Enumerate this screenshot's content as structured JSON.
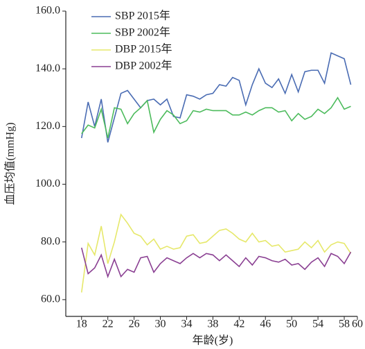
{
  "chart_data": {
    "type": "line",
    "x_label": "年龄(岁)",
    "y_label": "血压均值(mmHg)",
    "x": [
      18,
      19,
      20,
      21,
      22,
      23,
      24,
      25,
      26,
      27,
      28,
      29,
      30,
      31,
      32,
      33,
      34,
      35,
      36,
      37,
      38,
      39,
      40,
      41,
      42,
      43,
      44,
      45,
      46,
      47,
      48,
      49,
      50,
      51,
      52,
      53,
      54,
      55,
      56,
      57,
      58,
      59
    ],
    "series": [
      {
        "name": "SBP 2015年",
        "color": "#4a6cb3",
        "values": [
          116,
          128.5,
          120,
          129.5,
          114.5,
          123,
          131.5,
          132.5,
          129.5,
          126.5,
          129,
          129.5,
          127.5,
          129.5,
          123.5,
          123,
          131,
          130.5,
          129.5,
          131,
          131.5,
          134.5,
          134,
          137,
          136,
          127.5,
          134.5,
          140,
          135,
          133.5,
          136.5,
          131.5,
          138,
          132,
          139,
          139.5,
          139.5,
          135,
          145.5,
          144.5,
          143.5,
          134.5
        ]
      },
      {
        "name": "SBP 2002年",
        "color": "#4cbb5c",
        "values": [
          117.5,
          120.5,
          119.5,
          126,
          116,
          126.5,
          126,
          121,
          124.5,
          126.5,
          129,
          118,
          122.5,
          125.5,
          124,
          121,
          122,
          125.5,
          125,
          126,
          125.5,
          125.5,
          125.5,
          124,
          124,
          125,
          124,
          125.5,
          126.5,
          126.5,
          125,
          125.5,
          122,
          124.5,
          122.5,
          123.5,
          126,
          124.5,
          126.5,
          130,
          126,
          127
        ]
      },
      {
        "name": "DBP 2015年",
        "color": "#e6e86a",
        "values": [
          62.5,
          79.5,
          75.5,
          85.5,
          72.5,
          80,
          89.5,
          86.5,
          83,
          82,
          79,
          81,
          77.5,
          78.5,
          77.5,
          78,
          82,
          82.5,
          79.5,
          80,
          82,
          84,
          84.5,
          83,
          81,
          80,
          83,
          80,
          80.5,
          78.5,
          79,
          76.5,
          77,
          77.5,
          80,
          78,
          80.5,
          76.5,
          79,
          80,
          79.5,
          76
        ]
      },
      {
        "name": "DBP 2002年",
        "color": "#8a3f92",
        "values": [
          78,
          69,
          71,
          75.5,
          68,
          74,
          68,
          70.5,
          69.5,
          74.5,
          75,
          69.5,
          72.5,
          74.5,
          73.5,
          72.5,
          74.5,
          76,
          74.5,
          76,
          75.5,
          73.5,
          75.5,
          73.5,
          71.5,
          74.5,
          72,
          75,
          74.5,
          73.5,
          73,
          74,
          72,
          72.5,
          70.5,
          73,
          74.5,
          71.5,
          76,
          75,
          72.5,
          76.5
        ]
      }
    ],
    "xlim": [
      15.6,
      60
    ],
    "xticks": [
      18,
      22,
      26,
      30,
      34,
      38,
      42,
      46,
      50,
      54,
      58,
      60
    ],
    "ylim": [
      54.2,
      160
    ],
    "yticks": [
      {
        "value": 60,
        "label": "60.0"
      },
      {
        "value": 80,
        "label": "80.0"
      },
      {
        "value": 100,
        "label": "100.0"
      },
      {
        "value": 120,
        "label": "120.0"
      },
      {
        "value": 140,
        "label": "140.0"
      },
      {
        "value": 160,
        "label": "160.0"
      }
    ],
    "grid": false,
    "legend": "top-left"
  }
}
